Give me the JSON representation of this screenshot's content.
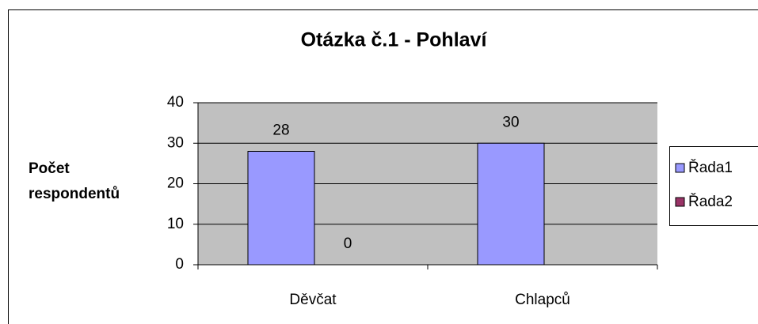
{
  "chart_data": {
    "type": "bar",
    "title": "Otázka č.1 - Pohlaví",
    "y_label": [
      "Počet",
      "respondentů"
    ],
    "categories": [
      "Děvčat",
      "Chlapců"
    ],
    "series": [
      {
        "name": "Řada1",
        "color": "#9999ff",
        "values": [
          28,
          30
        ]
      },
      {
        "name": "Řada2",
        "color": "#993366",
        "values": [
          0,
          null
        ]
      }
    ],
    "ylim": [
      0,
      40
    ],
    "yticks": [
      0,
      10,
      20,
      30,
      40
    ],
    "grid": true,
    "legend": "right"
  }
}
